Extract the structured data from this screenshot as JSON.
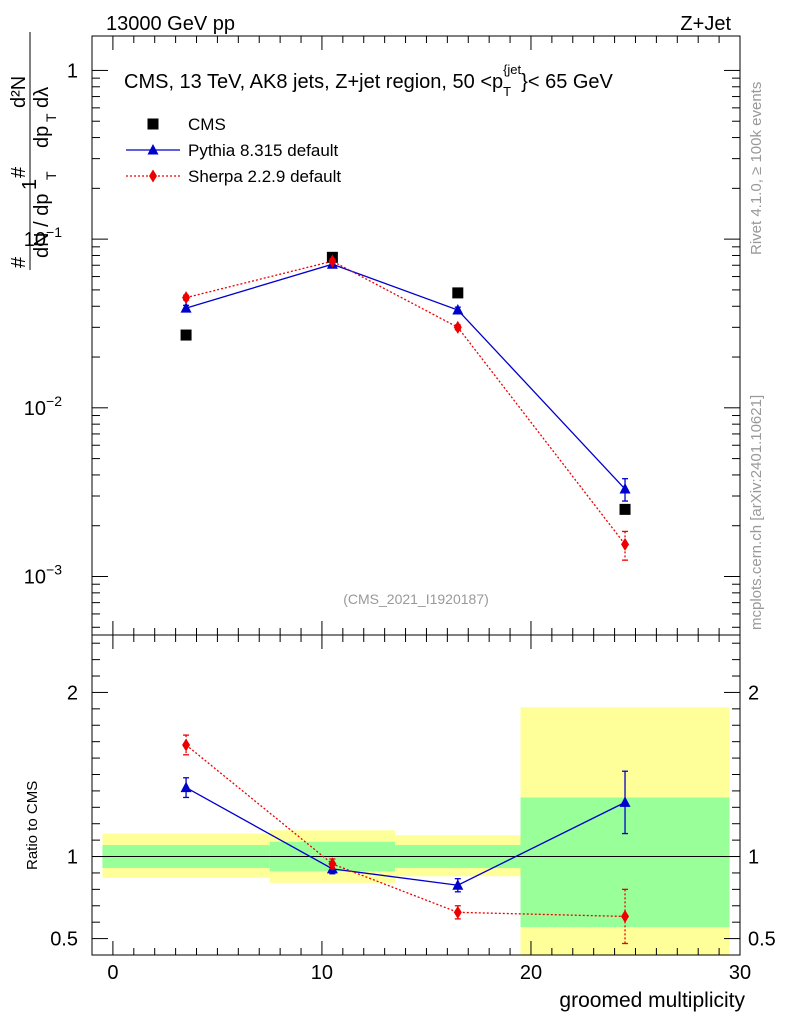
{
  "header": {
    "left": "13000 GeV pp",
    "right": "Z+Jet"
  },
  "side_labels": {
    "rivet": "Rivet 4.1.0, ≥ 100k events",
    "mcplots": "mcplots.cern.ch [arXiv:2401.10621]"
  },
  "colors": {
    "cms": "#000000",
    "pythia": "#0000cc",
    "sherpa": "#ee0000",
    "band_inner": "#99ff99",
    "band_outer": "#ffff99"
  },
  "chart_data": [
    {
      "type": "line",
      "panel": "main",
      "title": "CMS, 13 TeV, AK8 jets, Z+jet region, 50 <p_T^{jet}< 65 GeV",
      "title_parts": {
        "prefix": "CMS, 13 TeV, AK8 jets, Z+jet region, 50 <p",
        "sub": "T",
        "sup": "{jet",
        "suffix": "}< 65 GeV"
      },
      "analysis_id": "(CMS_2021_I1920187)",
      "ylabel": "1/dN/dp_T · d²N/dp_T dλ",
      "yscale": "log",
      "ylim": [
        0.00045,
        1.6
      ],
      "xlim": [
        -1,
        30
      ],
      "y_ticks": [
        {
          "value": 0.001,
          "base": "10",
          "exp": "−3"
        },
        {
          "value": 0.01,
          "base": "10",
          "exp": "−2"
        },
        {
          "value": 0.1,
          "base": "10",
          "exp": "−1"
        },
        {
          "value": 1,
          "base": "1",
          "exp": ""
        }
      ],
      "legend": [
        {
          "key": "cms",
          "label": "CMS"
        },
        {
          "key": "pythia",
          "label": "Pythia 8.315 default"
        },
        {
          "key": "sherpa",
          "label": "Sherpa 2.2.9 default"
        }
      ],
      "series": [
        {
          "name": "CMS",
          "key": "cms",
          "marker": "square",
          "x": [
            3.5,
            10.5,
            16.5,
            24.5
          ],
          "y": [
            0.027,
            0.078,
            0.048,
            0.0025
          ],
          "err": [
            0,
            0,
            0,
            0
          ]
        },
        {
          "name": "Pythia 8.315 default",
          "key": "pythia",
          "marker": "triangle",
          "x": [
            3.5,
            10.5,
            16.5,
            24.5
          ],
          "y": [
            0.039,
            0.071,
            0.038,
            0.0033
          ],
          "err": [
            0.0015,
            0.002,
            0.0015,
            0.0005
          ]
        },
        {
          "name": "Sherpa 2.2.9 default",
          "key": "sherpa",
          "marker": "diamond",
          "x": [
            3.5,
            10.5,
            16.5,
            24.5
          ],
          "y": [
            0.045,
            0.074,
            0.03,
            0.00155
          ],
          "err": [
            0.0015,
            0.002,
            0.001,
            0.0003
          ]
        }
      ]
    },
    {
      "type": "line",
      "panel": "ratio",
      "ylabel": "Ratio to CMS",
      "xlabel": "groomed multiplicity",
      "ylim": [
        0.4,
        2.35
      ],
      "xlim": [
        -1,
        30
      ],
      "x_ticks": [
        0,
        10,
        20,
        30
      ],
      "y_ticks": [
        0.5,
        1,
        2
      ],
      "bands": [
        {
          "x0": -0.5,
          "x1": 7.5,
          "inner": [
            0.93,
            1.07
          ],
          "outer": [
            0.87,
            1.14
          ]
        },
        {
          "x0": 7.5,
          "x1": 13.5,
          "inner": [
            0.91,
            1.09
          ],
          "outer": [
            0.84,
            1.16
          ]
        },
        {
          "x0": 13.5,
          "x1": 19.5,
          "inner": [
            0.93,
            1.07
          ],
          "outer": [
            0.88,
            1.13
          ]
        },
        {
          "x0": 19.5,
          "x1": 29.5,
          "inner": [
            0.57,
            1.36
          ],
          "outer": [
            0.4,
            1.91
          ]
        }
      ],
      "series": [
        {
          "name": "Pythia 8.315 default",
          "key": "pythia",
          "marker": "triangle",
          "x": [
            3.5,
            10.5,
            16.5,
            24.5
          ],
          "y": [
            1.42,
            0.925,
            0.825,
            1.33
          ],
          "err": [
            0.06,
            0.03,
            0.04,
            0.19
          ]
        },
        {
          "name": "Sherpa 2.2.9 default",
          "key": "sherpa",
          "marker": "diamond",
          "x": [
            3.5,
            10.5,
            16.5,
            24.5
          ],
          "y": [
            1.68,
            0.955,
            0.66,
            0.635
          ],
          "err": [
            0.06,
            0.03,
            0.04,
            0.165
          ]
        }
      ]
    }
  ]
}
